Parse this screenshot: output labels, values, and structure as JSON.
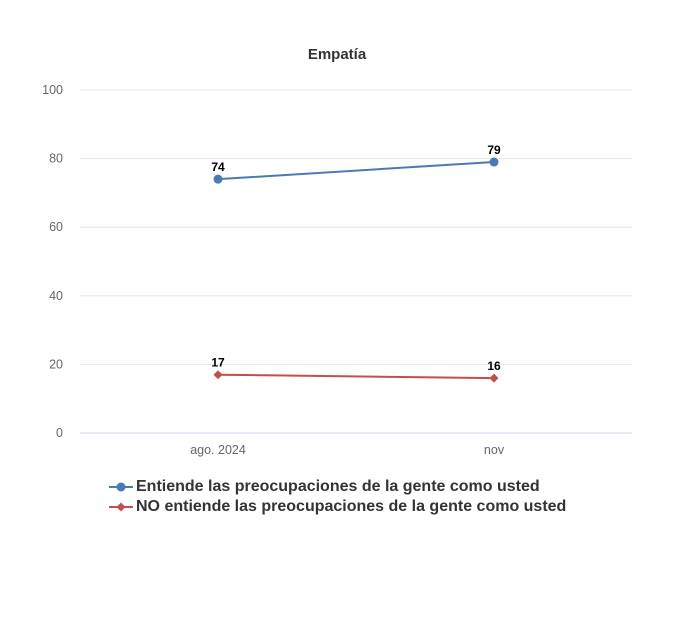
{
  "chart_data": {
    "type": "line",
    "title": "Empatía",
    "categories": [
      "ago. 2024",
      "nov"
    ],
    "ylim": [
      0,
      100
    ],
    "yticks": [
      0,
      20,
      40,
      60,
      80,
      100
    ],
    "grid": true,
    "legend_position": "bottom",
    "series": [
      {
        "name": "Entiende las preocupaciones de la gente como usted",
        "values": [
          74,
          79
        ],
        "color": "#4a7ab5",
        "marker": "circle"
      },
      {
        "name": "NO entiende las preocupaciones de la gente como usted",
        "values": [
          17,
          16
        ],
        "color": "#c0504d",
        "marker": "diamond"
      }
    ]
  }
}
